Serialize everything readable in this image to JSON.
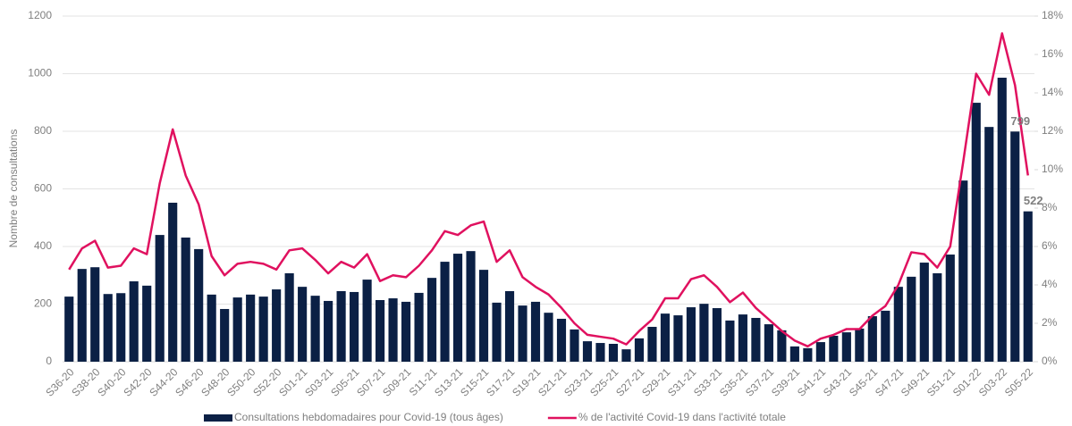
{
  "chart_data": {
    "type": "bar-line",
    "y_label": "Nombre de consultations",
    "categories": [
      "S36-20",
      null,
      "S38-20",
      null,
      "S40-20",
      null,
      "S42-20",
      null,
      "S44-20",
      null,
      "S46-20",
      null,
      "S48-20",
      null,
      "S50-20",
      null,
      "S52-20",
      null,
      "S01-21",
      null,
      "S03-21",
      null,
      "S05-21",
      null,
      "S07-21",
      null,
      "S09-21",
      null,
      "S11-21",
      null,
      "S13-21",
      null,
      "S15-21",
      null,
      "S17-21",
      null,
      "S19-21",
      null,
      "S21-21",
      null,
      "S23-21",
      null,
      "S25-21",
      null,
      "S27-21",
      null,
      "S29-21",
      null,
      "S31-21",
      null,
      "S33-21",
      null,
      "S35-21",
      null,
      "S37-21",
      null,
      "S39-21",
      null,
      "S41-21",
      null,
      "S43-21",
      null,
      "S45-21",
      null,
      "S47-21",
      null,
      "S49-21",
      null,
      "S51-21",
      null,
      "S01-22",
      null,
      "S03-22",
      null,
      "S05-22"
    ],
    "series": [
      {
        "name": "Consultations hebdomadaires pour Covid-19 (tous âges)",
        "type": "bar",
        "color": "#0b2045",
        "labeled_points": [
          73,
          74
        ],
        "values": [
          226,
          322,
          328,
          235,
          238,
          279,
          264,
          440,
          552,
          431,
          391,
          233,
          183,
          223,
          233,
          226,
          251,
          307,
          260,
          229,
          211,
          245,
          242,
          285,
          214,
          220,
          208,
          239,
          291,
          347,
          375,
          384,
          319,
          205,
          245,
          195,
          208,
          170,
          149,
          112,
          71,
          65,
          62,
          43,
          81,
          121,
          167,
          161,
          189,
          201,
          186,
          143,
          164,
          152,
          130,
          109,
          53,
          47,
          68,
          90,
          102,
          115,
          158,
          177,
          260,
          295,
          344,
          307,
          372,
          629,
          899,
          815,
          986,
          799,
          522
        ]
      },
      {
        "name": "% de l'activité Covid-19 dans l'activité totale",
        "type": "line",
        "axis": "y2",
        "color": "#e0115f",
        "values": [
          4.8,
          5.9,
          6.3,
          4.9,
          5.0,
          5.9,
          5.6,
          9.3,
          12.1,
          9.7,
          8.2,
          5.5,
          4.5,
          5.1,
          5.2,
          5.1,
          4.8,
          5.8,
          5.9,
          5.3,
          4.6,
          5.2,
          4.9,
          5.6,
          4.2,
          4.5,
          4.4,
          5.0,
          5.8,
          6.8,
          6.6,
          7.1,
          7.3,
          5.2,
          5.8,
          4.4,
          3.9,
          3.5,
          2.8,
          2.0,
          1.4,
          1.3,
          1.2,
          0.9,
          1.6,
          2.2,
          3.3,
          3.3,
          4.3,
          4.5,
          3.9,
          3.1,
          3.6,
          2.8,
          2.2,
          1.6,
          1.1,
          0.8,
          1.2,
          1.4,
          1.7,
          1.7,
          2.4,
          2.9,
          4.0,
          5.7,
          5.6,
          4.9,
          6.0,
          10.4,
          15.0,
          13.9,
          17.1,
          14.4,
          9.7
        ]
      }
    ],
    "ylim": [
      0,
      1200
    ],
    "yticks": [
      0,
      200,
      400,
      600,
      800,
      1000,
      1200
    ],
    "y2lim": [
      0,
      18
    ],
    "y2ticks": [
      {
        "value": 0,
        "label": "0%"
      },
      {
        "value": 2,
        "label": "2%"
      },
      {
        "value": 4,
        "label": "4%"
      },
      {
        "value": 6,
        "label": "6%"
      },
      {
        "value": 8,
        "label": "8%"
      },
      {
        "value": 10,
        "label": "10%"
      },
      {
        "value": 12,
        "label": "12%"
      },
      {
        "value": 14,
        "label": "14%"
      },
      {
        "value": 16,
        "label": "16%"
      },
      {
        "value": 18,
        "label": "18%"
      }
    ],
    "grid": true,
    "legend": "bottom"
  }
}
